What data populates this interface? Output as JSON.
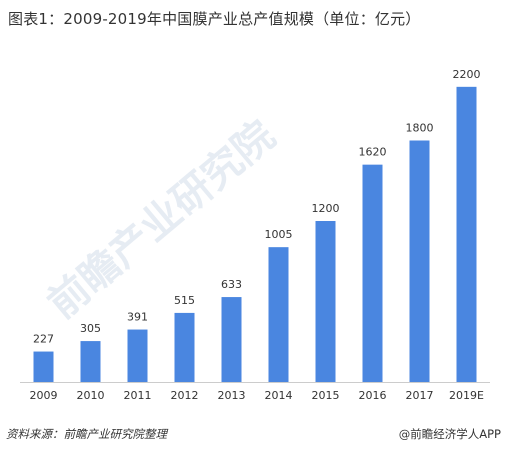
{
  "title": "图表1：2009-2019年中国膜产业总产值规模（单位：亿元）",
  "chart_data": {
    "type": "bar",
    "categories": [
      "2009",
      "2010",
      "2011",
      "2012",
      "2013",
      "2014",
      "2015",
      "2016",
      "2017",
      "2019E"
    ],
    "values": [
      227,
      305,
      391,
      515,
      633,
      1005,
      1200,
      1620,
      1800,
      2200
    ],
    "data_labels": [
      "227",
      "305",
      "391",
      "515",
      "633",
      "1005",
      "1200",
      "1620",
      "1800",
      "2200"
    ],
    "ylim": [
      0,
      2400
    ],
    "grid": false,
    "bar_color": "#4a86e0",
    "axis_color": "#cccccc"
  },
  "watermark": "前瞻产业研究院",
  "footer": {
    "source": "资料来源：前瞻产业研究院整理",
    "brand": "@前瞻经济学人APP"
  }
}
